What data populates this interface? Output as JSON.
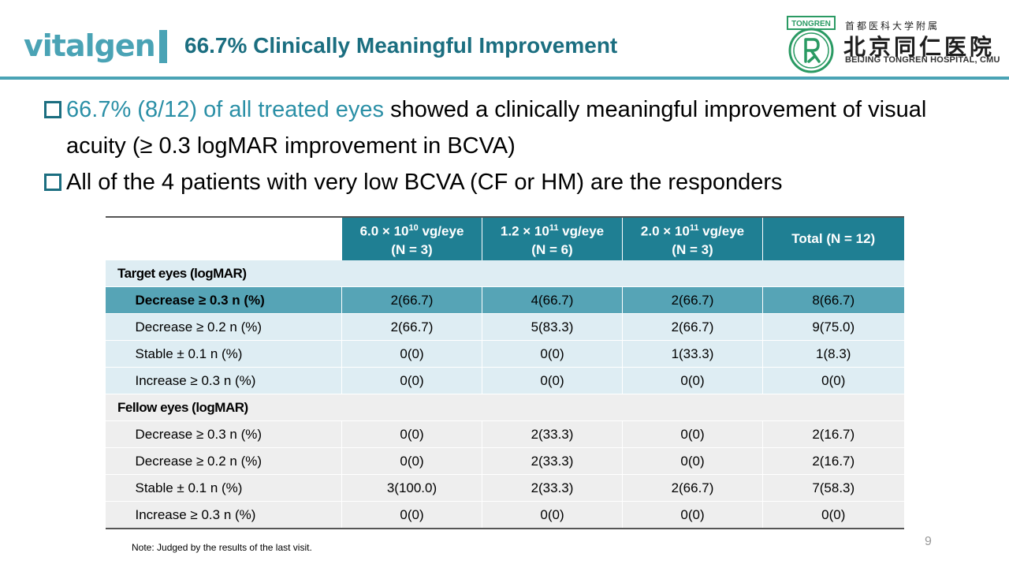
{
  "brand": "vitalgen",
  "title": "66.7% Clinically Meaningful Improvement",
  "hospital": {
    "emblem_text": "TONGREN",
    "cn_small": "首都医科大学附属",
    "cn_big": "北京同仁医院",
    "en": "BEIJING TONGREN HOSPITAL, CMU"
  },
  "bullets": [
    {
      "highlight": "66.7% (8/12) of all treated eyes",
      "text": " showed a clinically meaningful improvement of visual acuity (≥ 0.3 logMAR improvement in BCVA)"
    },
    {
      "highlight": "",
      "text": "All of the 4 patients with very low BCVA (CF or HM) are the responders"
    }
  ],
  "table": {
    "headers": [
      {
        "line1_base": "6.0 × 10",
        "line1_exp": "10",
        "line1_unit": " vg/eye",
        "line2": "(N = 3)"
      },
      {
        "line1_base": "1.2 × 10",
        "line1_exp": "11",
        "line1_unit": " vg/eye",
        "line2": "(N = 6)"
      },
      {
        "line1_base": "2.0 × 10",
        "line1_exp": "11",
        "line1_unit": " vg/eye",
        "line2": "(N = 3)"
      },
      {
        "line1": "Total (N = 12)"
      }
    ],
    "target_section": "Target eyes (logMAR)",
    "target_rows": [
      {
        "label": "Decrease ≥ 0.3 n (%)",
        "values": [
          "2(66.7)",
          "4(66.7)",
          "2(66.7)",
          "8(66.7)"
        ]
      },
      {
        "label": "Decrease ≥ 0.2 n (%)",
        "values": [
          "2(66.7)",
          "5(83.3)",
          "2(66.7)",
          "9(75.0)"
        ]
      },
      {
        "label": "Stable ± 0.1 n (%)",
        "values": [
          "0(0)",
          "0(0)",
          "1(33.3)",
          "1(8.3)"
        ]
      },
      {
        "label": "Increase ≥ 0.3 n (%)",
        "values": [
          "0(0)",
          "0(0)",
          "0(0)",
          "0(0)"
        ]
      }
    ],
    "fellow_section": "Fellow eyes (logMAR)",
    "fellow_rows": [
      {
        "label": "Decrease ≥ 0.3 n (%)",
        "values": [
          "0(0)",
          "2(33.3)",
          "0(0)",
          "2(16.7)"
        ]
      },
      {
        "label": "Decrease ≥ 0.2 n (%)",
        "values": [
          "0(0)",
          "2(33.3)",
          "0(0)",
          "2(16.7)"
        ]
      },
      {
        "label": "Stable ± 0.1 n (%)",
        "values": [
          "3(100.0)",
          "2(33.3)",
          "2(66.7)",
          "7(58.3)"
        ]
      },
      {
        "label": "Increase ≥ 0.3 n (%)",
        "values": [
          "0(0)",
          "0(0)",
          "0(0)",
          "0(0)"
        ]
      }
    ]
  },
  "note": "Note: Judged by the results of the last visit.",
  "page_number": "9",
  "colors": {
    "accent": "#4aa3b5",
    "title": "#1b6e80",
    "header_fill": "#1f7f93",
    "highlight_row": "#56a4b6"
  }
}
